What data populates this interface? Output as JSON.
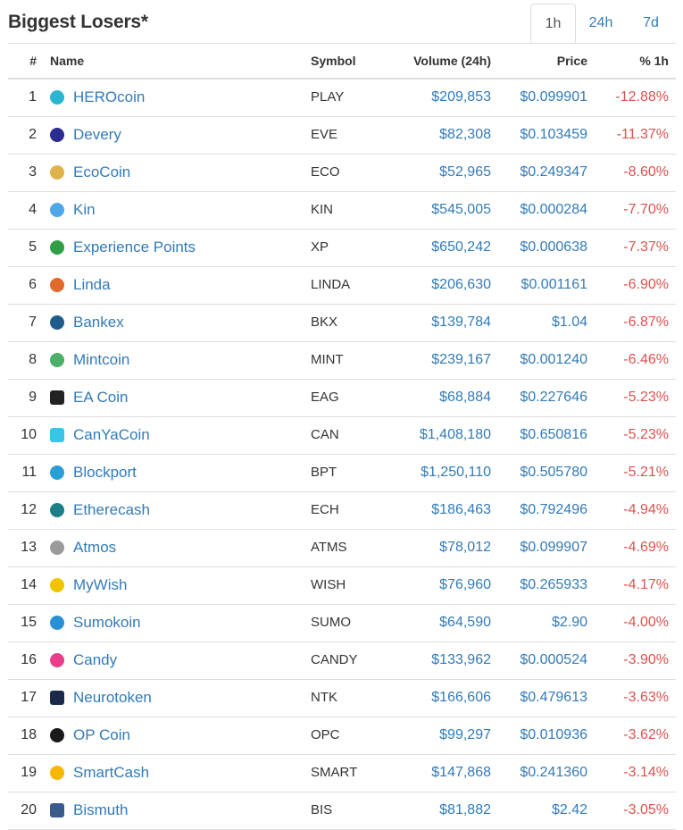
{
  "header": {
    "title": "Biggest Losers*",
    "tabs": [
      {
        "label": "1h",
        "active": true
      },
      {
        "label": "24h",
        "active": false
      },
      {
        "label": "7d",
        "active": false
      }
    ]
  },
  "table": {
    "columns": {
      "rank": "#",
      "name": "Name",
      "symbol": "Symbol",
      "volume": "Volume (24h)",
      "price": "Price",
      "pct": "% 1h"
    },
    "rows": [
      {
        "rank": "1",
        "name": "HEROcoin",
        "symbol": "PLAY",
        "volume": "$209,853",
        "price": "$0.099901",
        "pct": "-12.88%",
        "icon": "herocoin-icon",
        "color": "#2bb5d1"
      },
      {
        "rank": "2",
        "name": "Devery",
        "symbol": "EVE",
        "volume": "$82,308",
        "price": "$0.103459",
        "pct": "-11.37%",
        "icon": "devery-icon",
        "color": "#2a2f8f"
      },
      {
        "rank": "3",
        "name": "EcoCoin",
        "symbol": "ECO",
        "volume": "$52,965",
        "price": "$0.249347",
        "pct": "-8.60%",
        "icon": "ecocoin-icon",
        "color": "#e0b34a"
      },
      {
        "rank": "4",
        "name": "Kin",
        "symbol": "KIN",
        "volume": "$545,005",
        "price": "$0.000284",
        "pct": "-7.70%",
        "icon": "kin-icon",
        "color": "#4fa7e8"
      },
      {
        "rank": "5",
        "name": "Experience Points",
        "symbol": "XP",
        "volume": "$650,242",
        "price": "$0.000638",
        "pct": "-7.37%",
        "icon": "experience-points-icon",
        "color": "#2f9e44"
      },
      {
        "rank": "6",
        "name": "Linda",
        "symbol": "LINDA",
        "volume": "$206,630",
        "price": "$0.001161",
        "pct": "-6.90%",
        "icon": "linda-icon",
        "color": "#e0692b"
      },
      {
        "rank": "7",
        "name": "Bankex",
        "symbol": "BKX",
        "volume": "$139,784",
        "price": "$1.04",
        "pct": "-6.87%",
        "icon": "bankex-icon",
        "color": "#1f5c8a"
      },
      {
        "rank": "8",
        "name": "Mintcoin",
        "symbol": "MINT",
        "volume": "$239,167",
        "price": "$0.001240",
        "pct": "-6.46%",
        "icon": "mintcoin-icon",
        "color": "#4caf6a"
      },
      {
        "rank": "9",
        "name": "EA Coin",
        "symbol": "EAG",
        "volume": "$68,884",
        "price": "$0.227646",
        "pct": "-5.23%",
        "icon": "ea-coin-icon",
        "color": "#222222"
      },
      {
        "rank": "10",
        "name": "CanYaCoin",
        "symbol": "CAN",
        "volume": "$1,408,180",
        "price": "$0.650816",
        "pct": "-5.23%",
        "icon": "canyacoin-icon",
        "color": "#3cc4e6"
      },
      {
        "rank": "11",
        "name": "Blockport",
        "symbol": "BPT",
        "volume": "$1,250,110",
        "price": "$0.505780",
        "pct": "-5.21%",
        "icon": "blockport-icon",
        "color": "#2a9fd6"
      },
      {
        "rank": "12",
        "name": "Etherecash",
        "symbol": "ECH",
        "volume": "$186,463",
        "price": "$0.792496",
        "pct": "-4.94%",
        "icon": "etherecash-icon",
        "color": "#1c7e87"
      },
      {
        "rank": "13",
        "name": "Atmos",
        "symbol": "ATMS",
        "volume": "$78,012",
        "price": "$0.099907",
        "pct": "-4.69%",
        "icon": "atmos-icon",
        "color": "#9a9a9a"
      },
      {
        "rank": "14",
        "name": "MyWish",
        "symbol": "WISH",
        "volume": "$76,960",
        "price": "$0.265933",
        "pct": "-4.17%",
        "icon": "mywish-icon",
        "color": "#f2c400"
      },
      {
        "rank": "15",
        "name": "Sumokoin",
        "symbol": "SUMO",
        "volume": "$64,590",
        "price": "$2.90",
        "pct": "-4.00%",
        "icon": "sumokoin-icon",
        "color": "#2b8fd6"
      },
      {
        "rank": "16",
        "name": "Candy",
        "symbol": "CANDY",
        "volume": "$133,962",
        "price": "$0.000524",
        "pct": "-3.90%",
        "icon": "candy-icon",
        "color": "#e83e8c"
      },
      {
        "rank": "17",
        "name": "Neurotoken",
        "symbol": "NTK",
        "volume": "$166,606",
        "price": "$0.479613",
        "pct": "-3.63%",
        "icon": "neurotoken-icon",
        "color": "#1b2a4a"
      },
      {
        "rank": "18",
        "name": "OP Coin",
        "symbol": "OPC",
        "volume": "$99,297",
        "price": "$0.010936",
        "pct": "-3.62%",
        "icon": "op-coin-icon",
        "color": "#1a1a1a"
      },
      {
        "rank": "19",
        "name": "SmartCash",
        "symbol": "SMART",
        "volume": "$147,868",
        "price": "$0.241360",
        "pct": "-3.14%",
        "icon": "smartcash-icon",
        "color": "#f5b700"
      },
      {
        "rank": "20",
        "name": "Bismuth",
        "symbol": "BIS",
        "volume": "$81,882",
        "price": "$2.42",
        "pct": "-3.05%",
        "icon": "bismuth-icon",
        "color": "#3a5a8c"
      }
    ]
  }
}
